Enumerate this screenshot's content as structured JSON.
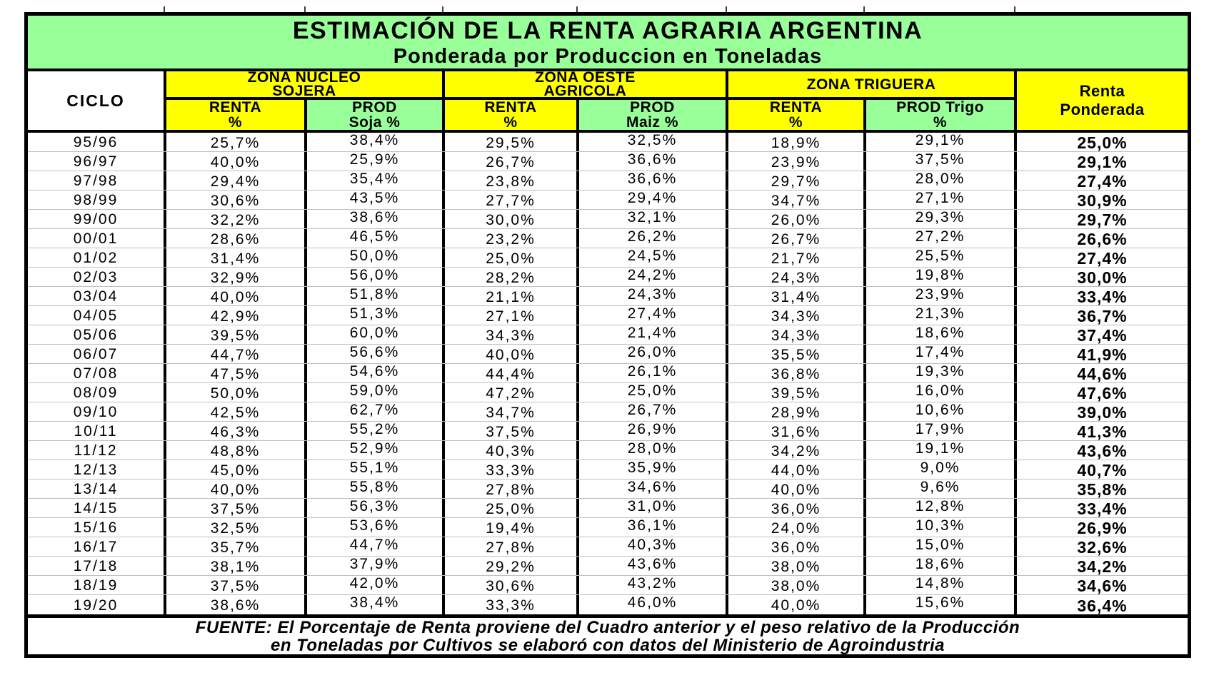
{
  "colors": {
    "header_yellow": "#FFFF00",
    "header_green": "#99FF99",
    "title_green": "#99FF99",
    "row_separator": "#BFBFBF",
    "border_black": "#000000"
  },
  "title": {
    "line1": "ESTIMACIÓN DE LA RENTA AGRARIA ARGENTINA",
    "line2": "Ponderada por Produccion en Toneladas"
  },
  "header": {
    "ciclo": "CICLO",
    "zones": [
      {
        "name": "ZONA NUCLEO\nSOJERA",
        "renta": "RENTA\n%",
        "prod": "PROD\nSoja %"
      },
      {
        "name": "ZONA OESTE\nAGRICOLA",
        "renta": "RENTA\n%",
        "prod": "PROD\nMaiz %"
      },
      {
        "name": "ZONA TRIGUERA",
        "renta": "RENTA\n%",
        "prod": "PROD Trigo\n%"
      }
    ],
    "renta_ponderada": "Renta\nPonderada"
  },
  "table": {
    "columns": [
      "CICLO",
      "ZONA NUCLEO SOJERA - RENTA %",
      "ZONA NUCLEO SOJERA - PROD Soja %",
      "ZONA OESTE AGRICOLA - RENTA %",
      "ZONA OESTE AGRICOLA - PROD Maiz %",
      "ZONA TRIGUERA - RENTA %",
      "ZONA TRIGUERA - PROD Trigo %",
      "Renta Ponderada"
    ],
    "rows": [
      [
        "95/96",
        "25,7%",
        "38,4%",
        "29,5%",
        "32,5%",
        "18,9%",
        "29,1%",
        "25,0%"
      ],
      [
        "96/97",
        "40,0%",
        "25,9%",
        "26,7%",
        "36,6%",
        "23,9%",
        "37,5%",
        "29,1%"
      ],
      [
        "97/98",
        "29,4%",
        "35,4%",
        "23,8%",
        "36,6%",
        "29,7%",
        "28,0%",
        "27,4%"
      ],
      [
        "98/99",
        "30,6%",
        "43,5%",
        "27,7%",
        "29,4%",
        "34,7%",
        "27,1%",
        "30,9%"
      ],
      [
        "99/00",
        "32,2%",
        "38,6%",
        "30,0%",
        "32,1%",
        "26,0%",
        "29,3%",
        "29,7%"
      ],
      [
        "00/01",
        "28,6%",
        "46,5%",
        "23,2%",
        "26,2%",
        "26,7%",
        "27,2%",
        "26,6%"
      ],
      [
        "01/02",
        "31,4%",
        "50,0%",
        "25,0%",
        "24,5%",
        "21,7%",
        "25,5%",
        "27,4%"
      ],
      [
        "02/03",
        "32,9%",
        "56,0%",
        "28,2%",
        "24,2%",
        "24,3%",
        "19,8%",
        "30,0%"
      ],
      [
        "03/04",
        "40,0%",
        "51,8%",
        "21,1%",
        "24,3%",
        "31,4%",
        "23,9%",
        "33,4%"
      ],
      [
        "04/05",
        "42,9%",
        "51,3%",
        "27,1%",
        "27,4%",
        "34,3%",
        "21,3%",
        "36,7%"
      ],
      [
        "05/06",
        "39,5%",
        "60,0%",
        "34,3%",
        "21,4%",
        "34,3%",
        "18,6%",
        "37,4%"
      ],
      [
        "06/07",
        "44,7%",
        "56,6%",
        "40,0%",
        "26,0%",
        "35,5%",
        "17,4%",
        "41,9%"
      ],
      [
        "07/08",
        "47,5%",
        "54,6%",
        "44,4%",
        "26,1%",
        "36,8%",
        "19,3%",
        "44,6%"
      ],
      [
        "08/09",
        "50,0%",
        "59,0%",
        "47,2%",
        "25,0%",
        "39,5%",
        "16,0%",
        "47,6%"
      ],
      [
        "09/10",
        "42,5%",
        "62,7%",
        "34,7%",
        "26,7%",
        "28,9%",
        "10,6%",
        "39,0%"
      ],
      [
        "10/11",
        "46,3%",
        "55,2%",
        "37,5%",
        "26,9%",
        "31,6%",
        "17,9%",
        "41,3%"
      ],
      [
        "11/12",
        "48,8%",
        "52,9%",
        "40,3%",
        "28,0%",
        "34,2%",
        "19,1%",
        "43,6%"
      ],
      [
        "12/13",
        "45,0%",
        "55,1%",
        "33,3%",
        "35,9%",
        "44,0%",
        "9,0%",
        "40,7%"
      ],
      [
        "13/14",
        "40,0%",
        "55,8%",
        "27,8%",
        "34,6%",
        "40,0%",
        "9,6%",
        "35,8%"
      ],
      [
        "14/15",
        "37,5%",
        "56,3%",
        "25,0%",
        "31,0%",
        "36,0%",
        "12,8%",
        "33,4%"
      ],
      [
        "15/16",
        "32,5%",
        "53,6%",
        "19,4%",
        "36,1%",
        "24,0%",
        "10,3%",
        "26,9%"
      ],
      [
        "16/17",
        "35,7%",
        "44,7%",
        "27,8%",
        "40,3%",
        "36,0%",
        "15,0%",
        "32,6%"
      ],
      [
        "17/18",
        "38,1%",
        "37,9%",
        "29,2%",
        "43,6%",
        "38,0%",
        "18,6%",
        "34,2%"
      ],
      [
        "18/19",
        "37,5%",
        "42,0%",
        "30,6%",
        "43,2%",
        "38,0%",
        "14,8%",
        "34,6%"
      ],
      [
        "19/20",
        "38,6%",
        "38,4%",
        "33,3%",
        "46,0%",
        "40,0%",
        "15,6%",
        "36,4%"
      ]
    ]
  },
  "footer": {
    "text": "FUENTE: El Porcentaje de Renta proviene del Cuadro anterior y el peso relativo de la Producción\nen Toneladas por Cultivos se elaboró con datos del Ministerio de Agroindustria"
  }
}
